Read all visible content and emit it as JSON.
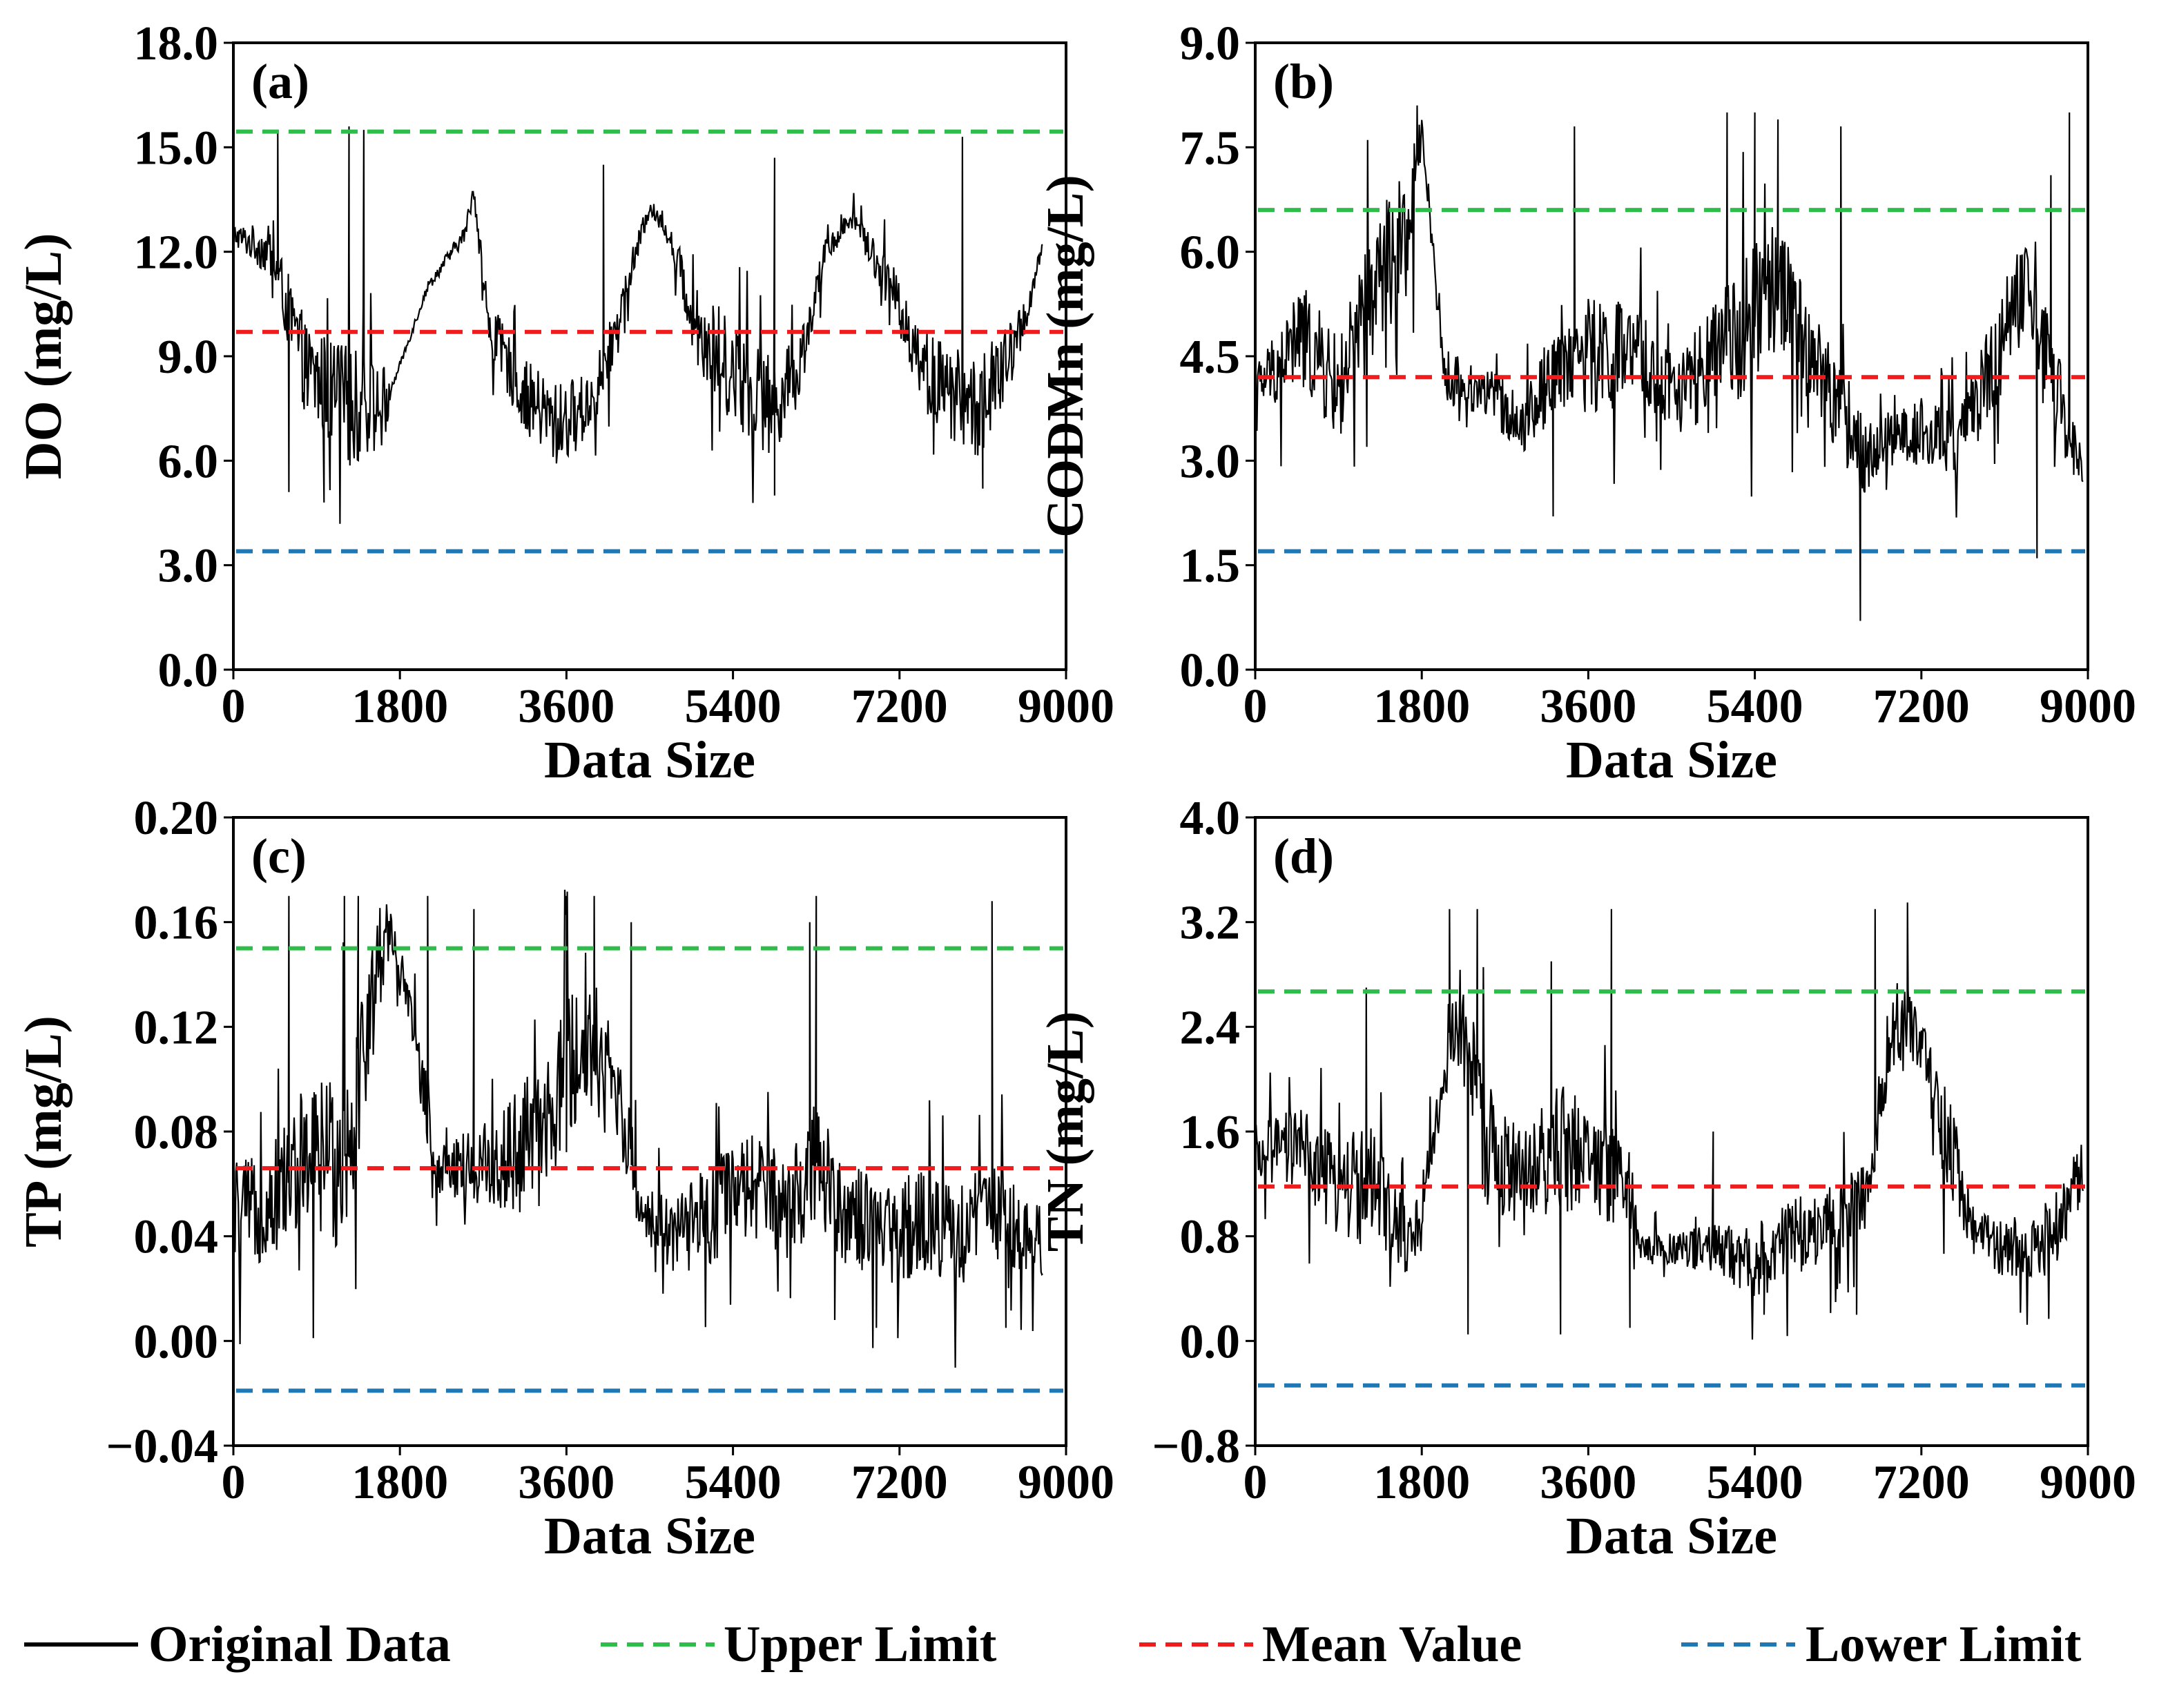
{
  "legend": {
    "position": "bottom",
    "items": [
      {
        "label": "Original Data",
        "color": "#000000",
        "style": "solid"
      },
      {
        "label": "Upper Limit",
        "color": "#2ebd4a",
        "style": "dashed"
      },
      {
        "label": "Mean Value",
        "color": "#ee1c1c",
        "style": "dashed"
      },
      {
        "label": "Lower Limit",
        "color": "#1f77b4",
        "style": "dashed"
      }
    ]
  },
  "chart_data": [
    {
      "id": "a",
      "type": "line",
      "panel_label": "(a)",
      "xlabel": "Data Size",
      "ylabel": "DO (mg/L)",
      "xlim": [
        0,
        9000
      ],
      "ylim": [
        0.0,
        18.0
      ],
      "xticks": [
        "0",
        "1800",
        "3600",
        "5400",
        "7200",
        "9000"
      ],
      "yticks": [
        "0.0",
        "3.0",
        "6.0",
        "9.0",
        "12.0",
        "15.0",
        "18.0"
      ],
      "upper_limit": 15.45,
      "mean_value": 9.7,
      "lower_limit": 3.4,
      "data_end": 8750,
      "series": {
        "name": "Original Data",
        "anchors": [
          [
            0,
            12.5,
            0.6
          ],
          [
            400,
            12.0,
            1.5
          ],
          [
            800,
            8.5,
            2.8
          ],
          [
            1300,
            7.5,
            3.5
          ],
          [
            1650,
            7.5,
            2.5
          ],
          [
            1700,
            8.0,
            0.2
          ],
          [
            2100,
            11.0,
            0.3
          ],
          [
            2500,
            12.5,
            0.5
          ],
          [
            2600,
            13.8,
            0.6
          ],
          [
            2750,
            10.0,
            1.5
          ],
          [
            3100,
            8.0,
            2.0
          ],
          [
            3500,
            7.0,
            2.5
          ],
          [
            3800,
            7.5,
            2.0
          ],
          [
            4000,
            8.5,
            1.8
          ],
          [
            4300,
            11.5,
            1.0
          ],
          [
            4500,
            13.3,
            0.5
          ],
          [
            4700,
            12.5,
            0.6
          ],
          [
            5000,
            10.0,
            2.5
          ],
          [
            5400,
            8.5,
            3.0
          ],
          [
            5800,
            7.5,
            3.0
          ],
          [
            6100,
            8.5,
            2.0
          ],
          [
            6400,
            12.0,
            0.8
          ],
          [
            6700,
            13.0,
            0.6
          ],
          [
            7100,
            11.0,
            1.5
          ],
          [
            7500,
            8.5,
            2.5
          ],
          [
            8000,
            7.5,
            3.0
          ],
          [
            8200,
            8.0,
            3.0
          ],
          [
            8400,
            9.0,
            2.0
          ],
          [
            8600,
            10.5,
            1.0
          ],
          [
            8750,
            12.2,
            0.3
          ]
        ],
        "spikes": [
          [
            480,
            15.4
          ],
          [
            600,
            5.1
          ],
          [
            1250,
            15.6
          ],
          [
            1410,
            15.5
          ],
          [
            980,
            4.8
          ],
          [
            5850,
            5.0
          ],
          [
            7880,
            15.3
          ],
          [
            8100,
            5.2
          ],
          [
            4000,
            14.5
          ],
          [
            5850,
            14.7
          ]
        ]
      }
    },
    {
      "id": "b",
      "type": "line",
      "panel_label": "(b)",
      "xlabel": "Data Size",
      "ylabel": "CODMn (mg/L)",
      "xlim": [
        0,
        9000
      ],
      "ylim": [
        0.0,
        9.0
      ],
      "xticks": [
        "0",
        "1800",
        "3600",
        "5400",
        "7200",
        "9000"
      ],
      "yticks": [
        "0.0",
        "1.5",
        "3.0",
        "4.5",
        "6.0",
        "7.5",
        "9.0"
      ],
      "upper_limit": 6.6,
      "mean_value": 4.2,
      "lower_limit": 1.7,
      "data_end": 8950,
      "series": {
        "name": "Original Data",
        "anchors": [
          [
            0,
            4.0,
            0.8
          ],
          [
            500,
            4.8,
            1.5
          ],
          [
            900,
            4.0,
            1.5
          ],
          [
            1300,
            5.5,
            2.0
          ],
          [
            1700,
            6.5,
            2.0
          ],
          [
            1800,
            7.8,
            0.3
          ],
          [
            2050,
            4.2,
            0.8
          ],
          [
            2500,
            4.0,
            0.8
          ],
          [
            2900,
            3.5,
            0.8
          ],
          [
            3300,
            4.5,
            1.5
          ],
          [
            3700,
            4.5,
            1.8
          ],
          [
            4100,
            4.5,
            1.5
          ],
          [
            4500,
            4.0,
            1.2
          ],
          [
            4900,
            4.2,
            1.8
          ],
          [
            5300,
            5.0,
            2.0
          ],
          [
            5700,
            5.5,
            2.0
          ],
          [
            6000,
            4.5,
            1.5
          ],
          [
            6400,
            3.5,
            1.5
          ],
          [
            6600,
            3.0,
            1.0
          ],
          [
            6800,
            3.3,
            0.8
          ],
          [
            7200,
            3.4,
            1.0
          ],
          [
            7600,
            3.2,
            1.0
          ],
          [
            8000,
            4.5,
            1.5
          ],
          [
            8300,
            5.5,
            1.5
          ],
          [
            8600,
            4.2,
            1.5
          ],
          [
            8950,
            2.8,
            0.6
          ]
        ],
        "spikes": [
          [
            1750,
            8.1
          ],
          [
            3220,
            2.2
          ],
          [
            3450,
            7.8
          ],
          [
            5100,
            8.0
          ],
          [
            5400,
            8.0
          ],
          [
            5650,
            7.9
          ],
          [
            6330,
            7.8
          ],
          [
            6540,
            0.7
          ],
          [
            8450,
            1.6
          ],
          [
            8800,
            8.0
          ],
          [
            8600,
            7.1
          ]
        ]
      }
    },
    {
      "id": "c",
      "type": "line",
      "panel_label": "(c)",
      "xlabel": "Data Size",
      "ylabel": "TP (mg/L)",
      "xlim": [
        0,
        9000
      ],
      "ylim": [
        -0.04,
        0.2
      ],
      "xticks": [
        "0",
        "1800",
        "3600",
        "5400",
        "7200",
        "9000"
      ],
      "yticks": [
        "−0.04",
        "0.00",
        "0.04",
        "0.08",
        "0.12",
        "0.16",
        "0.20"
      ],
      "upper_limit": 0.15,
      "mean_value": 0.066,
      "lower_limit": -0.019,
      "data_end": 8750,
      "series": {
        "name": "Original Data",
        "anchors": [
          [
            0,
            0.05,
            0.04
          ],
          [
            300,
            0.05,
            0.04
          ],
          [
            800,
            0.07,
            0.06
          ],
          [
            1200,
            0.07,
            0.07
          ],
          [
            1600,
            0.15,
            0.04
          ],
          [
            1700,
            0.16,
            0.02
          ],
          [
            2200,
            0.07,
            0.03
          ],
          [
            2600,
            0.065,
            0.03
          ],
          [
            3000,
            0.07,
            0.05
          ],
          [
            3400,
            0.08,
            0.06
          ],
          [
            3800,
            0.12,
            0.06
          ],
          [
            4200,
            0.09,
            0.04
          ],
          [
            4400,
            0.05,
            0.02
          ],
          [
            4800,
            0.04,
            0.03
          ],
          [
            5200,
            0.05,
            0.04
          ],
          [
            5600,
            0.06,
            0.04
          ],
          [
            6000,
            0.05,
            0.04
          ],
          [
            6300,
            0.07,
            0.05
          ],
          [
            6600,
            0.05,
            0.04
          ],
          [
            7000,
            0.04,
            0.04
          ],
          [
            7400,
            0.045,
            0.04
          ],
          [
            7800,
            0.04,
            0.04
          ],
          [
            8200,
            0.05,
            0.04
          ],
          [
            8750,
            0.04,
            0.03
          ]
        ],
        "spikes": [
          [
            600,
            0.17
          ],
          [
            1200,
            0.17
          ],
          [
            1350,
            0.17
          ],
          [
            3600,
            0.17
          ],
          [
            3900,
            0.17
          ],
          [
            4300,
            0.16
          ],
          [
            6300,
            0.17
          ],
          [
            6230,
            0.16
          ],
          [
            6500,
            0.008
          ],
          [
            6950,
            0.005
          ],
          [
            8200,
            0.168
          ],
          [
            8350,
            0.005
          ],
          [
            2100,
            0.17
          ],
          [
            2600,
            0.165
          ]
        ]
      }
    },
    {
      "id": "d",
      "type": "line",
      "panel_label": "(d)",
      "xlabel": "Data Size",
      "ylabel": "TN (mg/L)",
      "xlim": [
        0,
        9000
      ],
      "ylim": [
        -0.8,
        4.0
      ],
      "xticks": [
        "0",
        "1800",
        "3600",
        "5400",
        "7200",
        "9000"
      ],
      "yticks": [
        "−0.8",
        "0.0",
        "0.8",
        "1.6",
        "2.4",
        "3.2",
        "4.0"
      ],
      "upper_limit": 2.67,
      "mean_value": 1.18,
      "lower_limit": -0.34,
      "data_end": 8950,
      "series": {
        "name": "Original Data",
        "anchors": [
          [
            0,
            1.4,
            0.5
          ],
          [
            500,
            1.5,
            0.6
          ],
          [
            800,
            1.2,
            0.8
          ],
          [
            1200,
            1.2,
            1.0
          ],
          [
            1600,
            0.8,
            0.6
          ],
          [
            1700,
            0.7,
            0.5
          ],
          [
            2050,
            2.0,
            0.3
          ],
          [
            2200,
            2.5,
            1.0
          ],
          [
            2500,
            1.5,
            1.0
          ],
          [
            2900,
            1.2,
            0.8
          ],
          [
            3300,
            1.5,
            1.0
          ],
          [
            3800,
            1.3,
            0.8
          ],
          [
            4100,
            1.1,
            0.6
          ],
          [
            4150,
            0.7,
            0.2
          ],
          [
            4600,
            0.7,
            0.3
          ],
          [
            5000,
            0.7,
            0.4
          ],
          [
            5400,
            0.6,
            0.6
          ],
          [
            5800,
            0.8,
            0.6
          ],
          [
            6200,
            0.9,
            0.6
          ],
          [
            6600,
            1.1,
            0.5
          ],
          [
            6900,
            2.5,
            0.8
          ],
          [
            7200,
            2.2,
            0.6
          ],
          [
            7500,
            1.5,
            0.8
          ],
          [
            7800,
            0.8,
            0.4
          ],
          [
            8200,
            0.7,
            0.5
          ],
          [
            8600,
            0.8,
            0.6
          ],
          [
            8950,
            1.3,
            0.5
          ]
        ],
        "spikes": [
          [
            1200,
            2.7
          ],
          [
            2100,
            3.3
          ],
          [
            2300,
            0.05
          ],
          [
            2400,
            3.3
          ],
          [
            3300,
            0.05
          ],
          [
            3200,
            2.9
          ],
          [
            3850,
            3.3
          ],
          [
            4050,
            0.1
          ],
          [
            5500,
            0.2
          ],
          [
            6700,
            3.3
          ],
          [
            7050,
            3.35
          ],
          [
            6500,
            0.2
          ],
          [
            4950,
            1.6
          ]
        ]
      }
    }
  ]
}
